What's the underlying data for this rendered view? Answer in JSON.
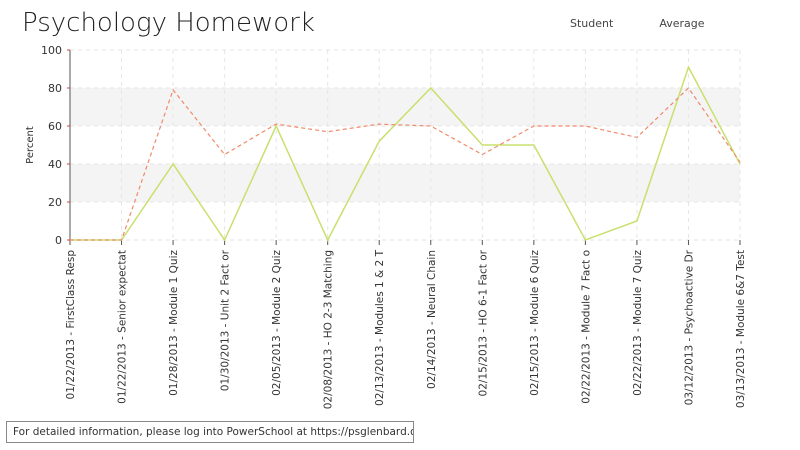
{
  "chart_data": {
    "type": "line",
    "title": "Psychology Homework",
    "xlabel": "",
    "ylabel": "Percent",
    "ylim": [
      0,
      100
    ],
    "yticks": [
      0,
      20,
      40,
      60,
      80,
      100
    ],
    "legend_position": "top-right",
    "categories": [
      "01/22/2013 - FirstClass Resp",
      "01/22/2013 - Senior expectat",
      "01/28/2013 - Module 1 Quiz",
      "01/30/2013 - Unit 2 Fact or",
      "02/05/2013 - Module 2 Quiz",
      "02/08/2013 - HO 2-3 Matching",
      "02/13/2013 - Modules 1 & 2 T",
      "02/14/2013 - Neural Chain",
      "02/15/2013 - HO 6-1 Fact or",
      "02/15/2013 - Module 6 Quiz",
      "02/22/2013 - Module 7 Fact o",
      "02/22/2013 - Module 7 Quiz",
      "03/12/2013 - Psychoactive Dr",
      "03/13/2013 - Module 6&7 Test"
    ],
    "series": [
      {
        "name": "Student",
        "color": "#c8e06e",
        "style": "solid",
        "values": [
          0,
          0,
          40,
          0,
          60,
          0,
          52,
          80,
          50,
          50,
          0,
          10,
          91,
          40
        ]
      },
      {
        "name": "Average",
        "color": "#f08a6a",
        "style": "dashed",
        "values": [
          0,
          0,
          79,
          45,
          61,
          57,
          61,
          60,
          45,
          60,
          60,
          54,
          80,
          41
        ]
      }
    ]
  },
  "footer": {
    "note": "For detailed information, please log into PowerSchool at https://psglenbard.org/"
  }
}
